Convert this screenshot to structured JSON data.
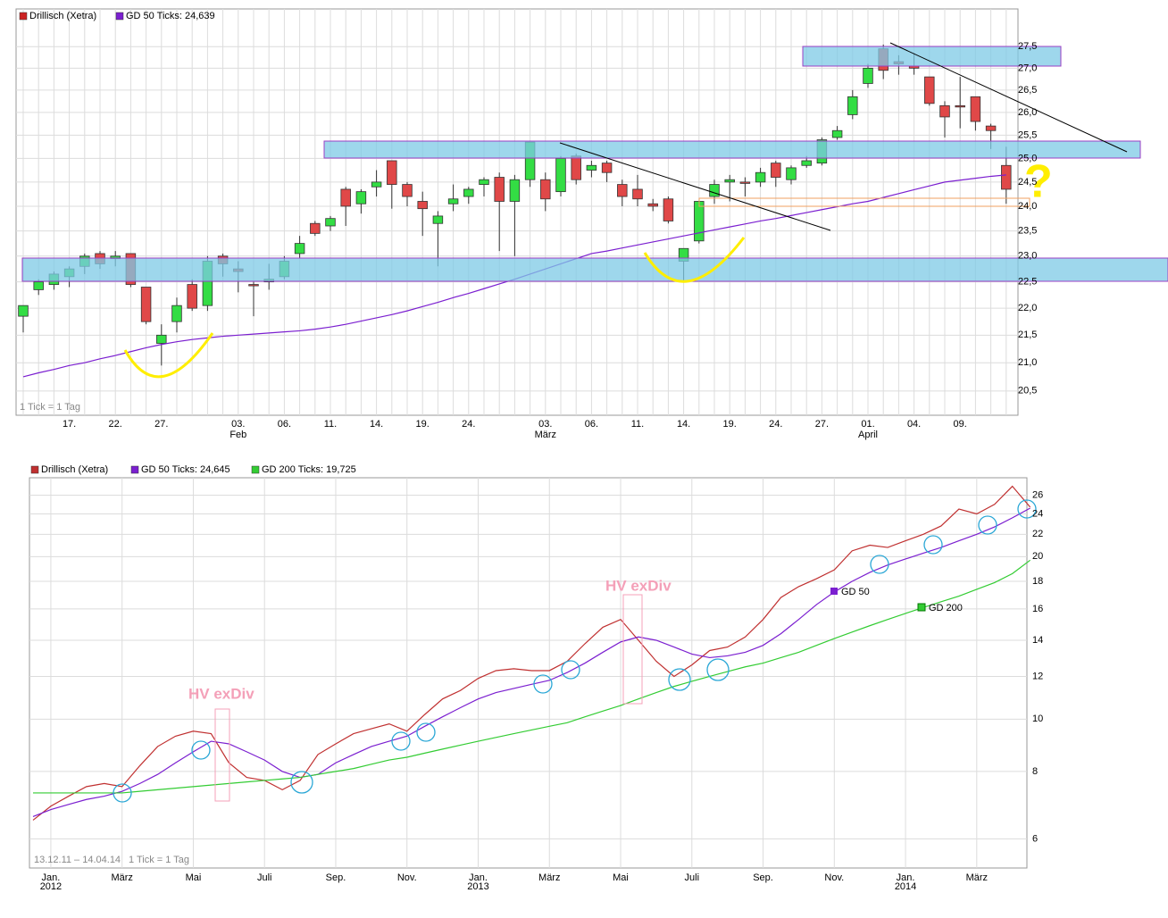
{
  "chart_data": [
    {
      "type": "candlestick",
      "log_scale": true,
      "grid": true,
      "question": "?",
      "tick_note": "1 Tick = 1 Tag",
      "categories": [
        null,
        null,
        null,
        "17.",
        null,
        null,
        "22.",
        null,
        null,
        "27.",
        null,
        null,
        null,
        null,
        "03.",
        null,
        null,
        "06.",
        null,
        null,
        "11.",
        null,
        null,
        "14.",
        null,
        null,
        "19.",
        null,
        null,
        "24.",
        null,
        null,
        null,
        null,
        "03.",
        null,
        null,
        "06.",
        null,
        null,
        "11.",
        null,
        null,
        "14.",
        null,
        null,
        "19.",
        null,
        null,
        "24.",
        null,
        null,
        "27.",
        null,
        null,
        "01.",
        null,
        null,
        "04.",
        null,
        null,
        "09.",
        null,
        null,
        null
      ],
      "months": [
        null,
        null,
        null,
        null,
        null,
        null,
        null,
        null,
        null,
        null,
        null,
        null,
        null,
        null,
        "Feb",
        null,
        null,
        null,
        null,
        null,
        null,
        null,
        null,
        null,
        null,
        null,
        null,
        null,
        null,
        null,
        null,
        null,
        null,
        null,
        "März",
        null,
        null,
        null,
        null,
        null,
        null,
        null,
        null,
        null,
        null,
        null,
        null,
        null,
        null,
        null,
        null,
        null,
        null,
        null,
        null,
        "April",
        null,
        null,
        null,
        null,
        null,
        null,
        null,
        null,
        null
      ],
      "ylim": [
        20.08,
        28.4
      ],
      "yticks": [
        {
          "value": 20.5,
          "label": "20,5"
        },
        {
          "value": 21,
          "label": "21,0"
        },
        {
          "value": 21.5,
          "label": "21,5"
        },
        {
          "value": 22,
          "label": "22,0"
        },
        {
          "value": 22.5,
          "label": "22,5"
        },
        {
          "value": 23,
          "label": "23,0"
        },
        {
          "value": 23.5,
          "label": "23,5"
        },
        {
          "value": 24,
          "label": "24,0"
        },
        {
          "value": 24.5,
          "label": "24,5"
        },
        {
          "value": 25,
          "label": "25,0"
        },
        {
          "value": 25.5,
          "label": "25,5"
        },
        {
          "value": 26,
          "label": "26,0"
        },
        {
          "value": 26.5,
          "label": "26,5"
        },
        {
          "value": 27,
          "label": "27,0"
        },
        {
          "value": 27.5,
          "label": "27,5"
        }
      ],
      "up_color": "#33dd44",
      "down_color": "#e04848",
      "series": [
        {
          "name": "Drillisch (Xetra)",
          "color": "#cc2222",
          "open": [
            21.85,
            22.35,
            22.45,
            22.6,
            22.8,
            23.05,
            22.95,
            23.05,
            22.4,
            21.35,
            21.75,
            22.45,
            22.05,
            23.0,
            22.75,
            22.45,
            22.5,
            22.6,
            23.05,
            23.65,
            23.6,
            24.35,
            24.05,
            24.4,
            24.95,
            24.45,
            24.1,
            23.65,
            24.05,
            24.2,
            24.45,
            24.6,
            24.1,
            24.55,
            24.55,
            24.3,
            25.05,
            24.75,
            24.9,
            24.45,
            24.35,
            24.05,
            24.15,
            22.9,
            23.3,
            24.2,
            24.5,
            24.5,
            24.5,
            24.9,
            24.55,
            24.85,
            24.9,
            25.45,
            25.95,
            26.65,
            27.45,
            27.15,
            27.05,
            26.8,
            26.15,
            26.15,
            26.35,
            25.7,
            24.85
          ],
          "high": [
            22.05,
            22.55,
            22.7,
            22.8,
            23.05,
            23.1,
            23.1,
            23.05,
            22.4,
            21.7,
            22.2,
            22.55,
            23.0,
            23.05,
            22.9,
            22.5,
            22.85,
            23.0,
            23.4,
            23.7,
            23.8,
            24.4,
            24.35,
            24.75,
            24.95,
            24.5,
            24.3,
            23.9,
            24.45,
            24.4,
            24.6,
            24.7,
            24.65,
            25.35,
            24.7,
            25.05,
            25.1,
            24.95,
            24.95,
            24.55,
            24.65,
            24.15,
            24.2,
            23.15,
            24.1,
            24.55,
            24.65,
            24.6,
            24.8,
            24.95,
            24.85,
            25.05,
            25.45,
            25.7,
            26.5,
            27.1,
            27.55,
            27.3,
            27.35,
            26.8,
            26.25,
            26.8,
            26.35,
            25.75,
            25.25
          ],
          "low": [
            21.55,
            22.25,
            22.35,
            22.4,
            22.65,
            22.75,
            22.8,
            22.4,
            21.7,
            20.95,
            21.55,
            21.95,
            21.95,
            22.6,
            22.3,
            21.85,
            22.35,
            22.55,
            22.95,
            23.4,
            23.5,
            23.6,
            23.85,
            24.2,
            23.95,
            24.0,
            23.4,
            22.8,
            23.9,
            24.05,
            24.2,
            23.1,
            23.0,
            24.4,
            23.9,
            24.2,
            24.45,
            24.6,
            24.5,
            24.0,
            24.0,
            23.9,
            23.65,
            22.5,
            23.25,
            24.05,
            24.1,
            24.2,
            24.4,
            24.4,
            24.45,
            24.8,
            24.85,
            25.4,
            25.85,
            26.55,
            26.75,
            26.85,
            26.85,
            26.15,
            25.45,
            25.65,
            25.6,
            25.2,
            24.05
          ],
          "close": [
            22.05,
            22.5,
            22.65,
            22.75,
            23.0,
            22.85,
            23.0,
            22.45,
            21.75,
            21.5,
            22.05,
            22.0,
            22.9,
            22.85,
            22.7,
            22.45,
            22.55,
            22.9,
            23.25,
            23.45,
            23.75,
            24.0,
            24.3,
            24.5,
            24.45,
            24.2,
            23.95,
            23.8,
            24.15,
            24.35,
            24.55,
            24.1,
            24.55,
            25.35,
            24.15,
            25.0,
            24.55,
            24.85,
            24.7,
            24.2,
            24.15,
            24.0,
            23.7,
            23.15,
            24.1,
            24.45,
            24.55,
            24.5,
            24.7,
            24.6,
            24.8,
            24.95,
            25.4,
            25.6,
            26.35,
            27.0,
            26.95,
            27.1,
            27.0,
            26.2,
            25.9,
            26.15,
            25.8,
            25.6,
            24.35
          ]
        },
        {
          "name": "GD 50 Ticks: 24,639",
          "color": "#7b1fd0",
          "values": [
            20.75,
            20.82,
            20.88,
            20.95,
            21.0,
            21.07,
            21.13,
            21.2,
            21.27,
            21.33,
            21.38,
            21.42,
            21.45,
            21.48,
            21.5,
            21.52,
            21.54,
            21.56,
            21.58,
            21.61,
            21.65,
            21.7,
            21.76,
            21.82,
            21.88,
            21.95,
            22.03,
            22.11,
            22.2,
            22.28,
            22.37,
            22.46,
            22.55,
            22.65,
            22.75,
            22.85,
            22.95,
            23.05,
            23.1,
            23.16,
            23.22,
            23.28,
            23.34,
            23.4,
            23.46,
            23.52,
            23.58,
            23.64,
            23.7,
            23.75,
            23.81,
            23.87,
            23.93,
            23.99,
            24.05,
            24.1,
            24.18,
            24.26,
            24.34,
            24.42,
            24.5,
            24.54,
            24.58,
            24.62,
            24.65
          ]
        }
      ]
    },
    {
      "type": "line",
      "log_scale": true,
      "range_note": "13.12.11 – 14.04.14",
      "tick_note": "1 Tick = 1 Tag",
      "annotations": [
        "HV exDiv",
        "HV exDiv",
        "GD 50",
        "GD 200"
      ],
      "categories": [
        null,
        "Jan.",
        null,
        null,
        null,
        "März",
        null,
        null,
        null,
        "Mai",
        null,
        null,
        null,
        "Juli",
        null,
        null,
        null,
        "Sep.",
        null,
        null,
        null,
        "Nov.",
        null,
        null,
        null,
        "Jan.",
        null,
        null,
        null,
        "März",
        null,
        null,
        null,
        "Mai",
        null,
        null,
        null,
        "Juli",
        null,
        null,
        null,
        "Sep.",
        null,
        null,
        null,
        "Nov.",
        null,
        null,
        null,
        "Jan.",
        null,
        null,
        null,
        "März",
        null,
        null,
        null
      ],
      "years": [
        null,
        "2012",
        null,
        null,
        null,
        null,
        null,
        null,
        null,
        null,
        null,
        null,
        null,
        null,
        null,
        null,
        null,
        null,
        null,
        null,
        null,
        null,
        null,
        null,
        null,
        "2013",
        null,
        null,
        null,
        null,
        null,
        null,
        null,
        null,
        null,
        null,
        null,
        null,
        null,
        null,
        null,
        null,
        null,
        null,
        null,
        null,
        null,
        null,
        null,
        "2014",
        null,
        null,
        null,
        null,
        null,
        null,
        null
      ],
      "ylim": [
        5.3,
        28
      ],
      "yticks": [
        6,
        8,
        10,
        12,
        14,
        16,
        18,
        20,
        22,
        24,
        26
      ],
      "series": [
        {
          "name": "Drillisch (Xetra)",
          "color": "#c03030",
          "values": [
            6.5,
            6.9,
            7.2,
            7.5,
            7.6,
            7.5,
            8.2,
            8.9,
            9.3,
            9.5,
            9.4,
            8.3,
            7.8,
            7.7,
            7.4,
            7.7,
            8.6,
            9.0,
            9.4,
            9.6,
            9.8,
            9.5,
            10.2,
            10.9,
            11.3,
            11.9,
            12.3,
            12.4,
            12.3,
            12.3,
            12.8,
            13.8,
            14.8,
            15.3,
            14.0,
            12.8,
            12.0,
            12.6,
            13.4,
            13.6,
            14.2,
            15.3,
            16.8,
            17.6,
            18.2,
            18.9,
            20.5,
            21.0,
            20.8,
            21.4,
            22.0,
            22.8,
            24.5,
            24.0,
            25.0,
            27.0,
            24.7
          ]
        },
        {
          "name": "GD 50 Ticks: 24,645",
          "color": "#7b1fd0",
          "values": [
            6.6,
            6.8,
            6.95,
            7.1,
            7.2,
            7.35,
            7.6,
            7.9,
            8.3,
            8.7,
            9.1,
            9.0,
            8.7,
            8.4,
            8.0,
            7.8,
            7.9,
            8.3,
            8.6,
            8.9,
            9.1,
            9.3,
            9.7,
            10.1,
            10.5,
            10.9,
            11.2,
            11.4,
            11.6,
            11.8,
            12.2,
            12.7,
            13.3,
            13.9,
            14.2,
            14.0,
            13.6,
            13.2,
            13.0,
            13.1,
            13.3,
            13.7,
            14.4,
            15.3,
            16.3,
            17.2,
            18.0,
            18.7,
            19.3,
            19.8,
            20.3,
            20.8,
            21.4,
            22.0,
            22.7,
            23.6,
            24.6
          ]
        },
        {
          "name": "GD 200 Ticks: 19,725",
          "color": "#33cc33",
          "values": [
            7.3,
            7.3,
            7.3,
            7.3,
            7.3,
            7.3,
            7.35,
            7.4,
            7.45,
            7.5,
            7.55,
            7.6,
            7.65,
            7.7,
            7.75,
            7.8,
            7.9,
            8.0,
            8.1,
            8.25,
            8.4,
            8.5,
            8.65,
            8.8,
            8.95,
            9.1,
            9.25,
            9.4,
            9.55,
            9.7,
            9.85,
            10.1,
            10.35,
            10.6,
            10.9,
            11.2,
            11.5,
            11.75,
            12.0,
            12.25,
            12.5,
            12.7,
            13.0,
            13.3,
            13.7,
            14.1,
            14.5,
            14.9,
            15.3,
            15.7,
            16.1,
            16.5,
            16.9,
            17.4,
            17.9,
            18.6,
            19.7
          ]
        }
      ]
    }
  ]
}
